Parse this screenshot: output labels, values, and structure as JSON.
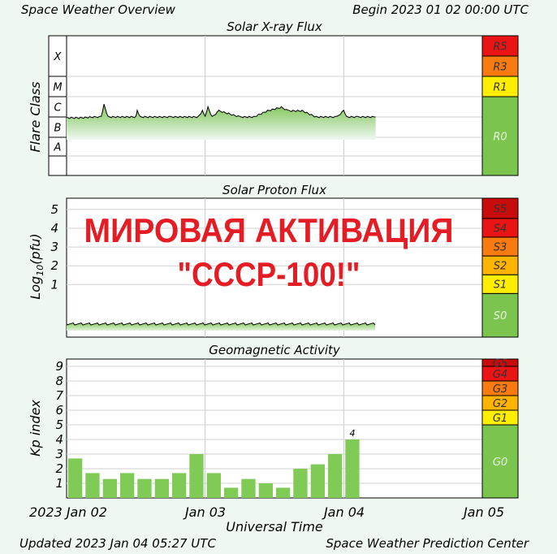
{
  "header": {
    "title": "Space Weather Overview",
    "begin": "Begin 2023 01 02 00:00 UTC"
  },
  "footer": {
    "updated": "Updated 2023 Jan 04 05:27 UTC",
    "center": "Space Weather Prediction Center"
  },
  "overlay": {
    "line1": "МИРОВАЯ АКТИВАЦИЯ",
    "line2": "\"СССР-100!\""
  },
  "colors": {
    "background": "#eef8f1",
    "bar_green": "#7fcb55",
    "scale_green": "#7bc54e",
    "scale_yellow": "#ffee00",
    "scale_amber": "#ffb400",
    "scale_orange": "#f97a0e",
    "scale_red": "#ea1414",
    "scale_darkred": "#c80c0c",
    "overlay_red": "#e51c24"
  },
  "chart_data": [
    {
      "type": "line",
      "title": "Solar X-ray Flux",
      "ylabel": "Flare Class",
      "y_categories": [
        "A",
        "B",
        "C",
        "M",
        "X"
      ],
      "x_ticks": [
        "2023 Jan 02",
        "Jan 03",
        "Jan 04",
        "Jan 05"
      ],
      "xlim_days": [
        0,
        3
      ],
      "data_end_day": 2.23,
      "series": [
        {
          "x_days": [
            0,
            0.1,
            0.2,
            0.25,
            0.27,
            0.3,
            0.4,
            0.5,
            0.51,
            0.53,
            0.6,
            0.75,
            0.85,
            0.95,
            0.98,
            1.0,
            1.02,
            1.05,
            1.1,
            1.25,
            1.35,
            1.45,
            1.55,
            1.6,
            1.7,
            1.8,
            1.9,
            1.95,
            2.0,
            2.02,
            2.1,
            2.23
          ],
          "flux_class": [
            "B9",
            "B9",
            "C1",
            "C1",
            "C4",
            "C1",
            "C1",
            "C1",
            "C2",
            "C1",
            "C1",
            "C1",
            "C1",
            "C1",
            "C2",
            "C1",
            "C3",
            "C1",
            "C2",
            "C1",
            "C1",
            "C2",
            "C3",
            "C2",
            "C2",
            "C1",
            "C1",
            "C1",
            "C2",
            "C1",
            "C1",
            "C1"
          ]
        }
      ],
      "scale": [
        "R0",
        "R1",
        "R3",
        "R5"
      ]
    },
    {
      "type": "line",
      "title": "Solar Proton Flux",
      "ylabel": "Log10(pfu)",
      "y_ticks": [
        1,
        2,
        3,
        4,
        5
      ],
      "ylim": [
        -1.8,
        5.6
      ],
      "xlim_days": [
        0,
        3
      ],
      "data_end_day": 2.23,
      "series": [
        {
          "x_days": [
            0,
            2.23
          ],
          "log10_pfu": [
            -1.1,
            -1.1
          ]
        }
      ],
      "scale": [
        "S0",
        "S1",
        "S2",
        "S3",
        "S4",
        "S5"
      ]
    },
    {
      "type": "bar",
      "title": "Geomagnetic Activity",
      "ylabel": "Kp index",
      "xlabel": "Universal Time",
      "y_ticks": [
        1,
        2,
        3,
        4,
        5,
        6,
        7,
        8,
        9
      ],
      "ylim": [
        0,
        9.5
      ],
      "x_ticks": [
        "2023 Jan 02",
        "Jan 03",
        "Jan 04",
        "Jan 05"
      ],
      "interval_hours": 3,
      "values": [
        2.7,
        1.7,
        1.3,
        1.7,
        1.3,
        1.3,
        1.7,
        3.0,
        1.7,
        0.7,
        1.3,
        1.0,
        0.7,
        2.0,
        2.3,
        3.0,
        4.0
      ],
      "labels": {
        "16": "4"
      },
      "scale": [
        "G0",
        "G1",
        "G2",
        "G3",
        "G4",
        "G5"
      ]
    }
  ]
}
